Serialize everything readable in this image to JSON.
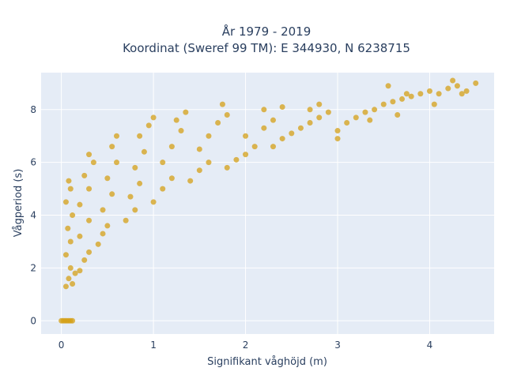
{
  "chart_data": {
    "type": "scatter",
    "title_lines": [
      "År 1979 - 2019",
      "Koordinat (Sweref 99 TM): E 344930, N 6238715"
    ],
    "xlabel": "Signifikant våghöjd (m)",
    "ylabel": "Vågperiod (s)",
    "xlim": [
      -0.22,
      4.7
    ],
    "ylim": [
      -0.5,
      9.4
    ],
    "x_ticks": [
      0,
      1,
      2,
      3,
      4
    ],
    "y_ticks": [
      0,
      2,
      4,
      6,
      8
    ],
    "grid": true,
    "legend": "none",
    "marker_color": "#d4a017",
    "plot_background": "#e5ecf6",
    "points": [
      [
        0.0,
        0.0
      ],
      [
        0.02,
        0.0
      ],
      [
        0.04,
        0.0
      ],
      [
        0.06,
        0.0
      ],
      [
        0.08,
        0.0
      ],
      [
        0.1,
        0.0
      ],
      [
        0.12,
        0.0
      ],
      [
        0.05,
        1.3
      ],
      [
        0.08,
        1.6
      ],
      [
        0.1,
        2.0
      ],
      [
        0.12,
        1.4
      ],
      [
        0.15,
        1.8
      ],
      [
        0.05,
        2.5
      ],
      [
        0.1,
        3.0
      ],
      [
        0.07,
        3.5
      ],
      [
        0.12,
        4.0
      ],
      [
        0.05,
        4.5
      ],
      [
        0.1,
        5.0
      ],
      [
        0.08,
        5.3
      ],
      [
        0.2,
        1.9
      ],
      [
        0.25,
        2.3
      ],
      [
        0.3,
        2.6
      ],
      [
        0.2,
        3.2
      ],
      [
        0.3,
        3.8
      ],
      [
        0.2,
        4.4
      ],
      [
        0.3,
        5.0
      ],
      [
        0.25,
        5.5
      ],
      [
        0.35,
        6.0
      ],
      [
        0.3,
        6.3
      ],
      [
        0.4,
        2.9
      ],
      [
        0.45,
        3.3
      ],
      [
        0.5,
        3.6
      ],
      [
        0.45,
        4.2
      ],
      [
        0.55,
        4.8
      ],
      [
        0.5,
        5.4
      ],
      [
        0.6,
        6.0
      ],
      [
        0.55,
        6.6
      ],
      [
        0.6,
        7.0
      ],
      [
        0.7,
        3.8
      ],
      [
        0.8,
        4.2
      ],
      [
        0.75,
        4.7
      ],
      [
        0.85,
        5.2
      ],
      [
        0.8,
        5.8
      ],
      [
        0.9,
        6.4
      ],
      [
        0.85,
        7.0
      ],
      [
        0.95,
        7.4
      ],
      [
        1.0,
        7.7
      ],
      [
        1.0,
        4.5
      ],
      [
        1.1,
        5.0
      ],
      [
        1.2,
        5.4
      ],
      [
        1.1,
        6.0
      ],
      [
        1.2,
        6.6
      ],
      [
        1.3,
        7.2
      ],
      [
        1.25,
        7.6
      ],
      [
        1.35,
        7.9
      ],
      [
        1.4,
        5.3
      ],
      [
        1.5,
        5.7
      ],
      [
        1.6,
        6.0
      ],
      [
        1.5,
        6.5
      ],
      [
        1.6,
        7.0
      ],
      [
        1.7,
        7.5
      ],
      [
        1.8,
        7.8
      ],
      [
        1.75,
        8.2
      ],
      [
        1.8,
        5.8
      ],
      [
        1.9,
        6.1
      ],
      [
        2.0,
        6.3
      ],
      [
        2.1,
        6.6
      ],
      [
        2.0,
        7.0
      ],
      [
        2.2,
        7.3
      ],
      [
        2.3,
        7.6
      ],
      [
        2.2,
        8.0
      ],
      [
        2.4,
        8.1
      ],
      [
        2.3,
        6.6
      ],
      [
        2.4,
        6.9
      ],
      [
        2.5,
        7.1
      ],
      [
        2.6,
        7.3
      ],
      [
        2.7,
        7.5
      ],
      [
        2.8,
        7.7
      ],
      [
        2.9,
        7.9
      ],
      [
        2.7,
        8.0
      ],
      [
        2.8,
        8.2
      ],
      [
        3.0,
        7.2
      ],
      [
        3.1,
        7.5
      ],
      [
        3.2,
        7.7
      ],
      [
        3.3,
        7.9
      ],
      [
        3.4,
        8.0
      ],
      [
        3.5,
        8.2
      ],
      [
        3.6,
        8.3
      ],
      [
        3.0,
        6.9
      ],
      [
        3.35,
        7.6
      ],
      [
        3.7,
        8.4
      ],
      [
        3.8,
        8.5
      ],
      [
        3.9,
        8.6
      ],
      [
        4.0,
        8.7
      ],
      [
        4.1,
        8.6
      ],
      [
        4.2,
        8.8
      ],
      [
        4.3,
        8.9
      ],
      [
        4.4,
        8.7
      ],
      [
        4.5,
        9.0
      ],
      [
        3.55,
        8.9
      ],
      [
        3.75,
        8.6
      ],
      [
        3.65,
        7.8
      ],
      [
        4.05,
        8.2
      ],
      [
        4.35,
        8.6
      ],
      [
        4.25,
        9.1
      ]
    ]
  }
}
